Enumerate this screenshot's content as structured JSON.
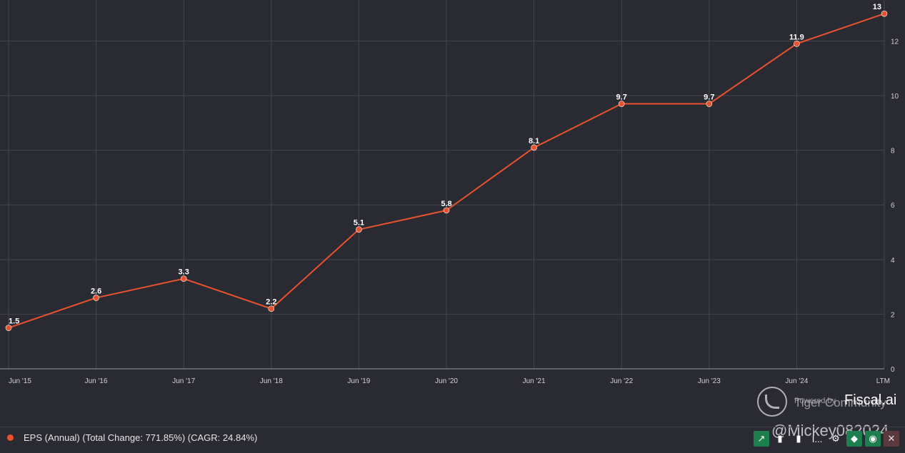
{
  "chart_data": {
    "type": "line",
    "categories": [
      "Jun '15",
      "Jun '16",
      "Jun '17",
      "Jun '18",
      "Jun '19",
      "Jun '20",
      "Jun '21",
      "Jun '22",
      "Jun '23",
      "Jun '24",
      "LTM"
    ],
    "series": [
      {
        "name": "EPS (Annual) (Total Change: 771.85%) (CAGR: 24.84%)",
        "values": [
          1.5,
          2.6,
          3.3,
          2.2,
          5.1,
          5.8,
          8.1,
          9.7,
          9.7,
          11.9,
          13
        ],
        "labels": [
          "1.5",
          "2.6",
          "3.3",
          "2.2",
          "5.1",
          "5.8",
          "8.1",
          "9.7",
          "9.7",
          "11.9",
          "13"
        ]
      }
    ],
    "ylim": [
      0,
      13.5
    ],
    "yticks": [
      "0",
      "2",
      "4",
      "6",
      "8",
      "10",
      "12"
    ],
    "yaxis_side": "right",
    "grid": true,
    "legend_position": "bottom-left",
    "colors": {
      "series": "#e8522f",
      "background": "#2a2a32",
      "grid": "#44444e"
    }
  },
  "watermark": {
    "powered_by": "Powered by",
    "community": "Tiger Community",
    "brand": "Fiscal.ai",
    "handle": "@Mickey082024"
  },
  "legend": {
    "label": "EPS (Annual) (Total Change: 771.85%) (CAGR: 24.84%)"
  },
  "toolbar": {
    "buttons": [
      {
        "icon": "trend-line-icon",
        "glyph": "↗"
      },
      {
        "icon": "bar-chart-icon",
        "glyph": "▮"
      },
      {
        "icon": "stacked-bar-icon",
        "glyph": "▮"
      },
      {
        "icon": "more-icon",
        "glyph": "I..."
      },
      {
        "icon": "gear-icon",
        "glyph": "⚙"
      },
      {
        "icon": "tag-icon",
        "glyph": "◆"
      },
      {
        "icon": "eye-icon",
        "glyph": "◉"
      },
      {
        "icon": "close-icon",
        "glyph": "✕"
      }
    ]
  }
}
